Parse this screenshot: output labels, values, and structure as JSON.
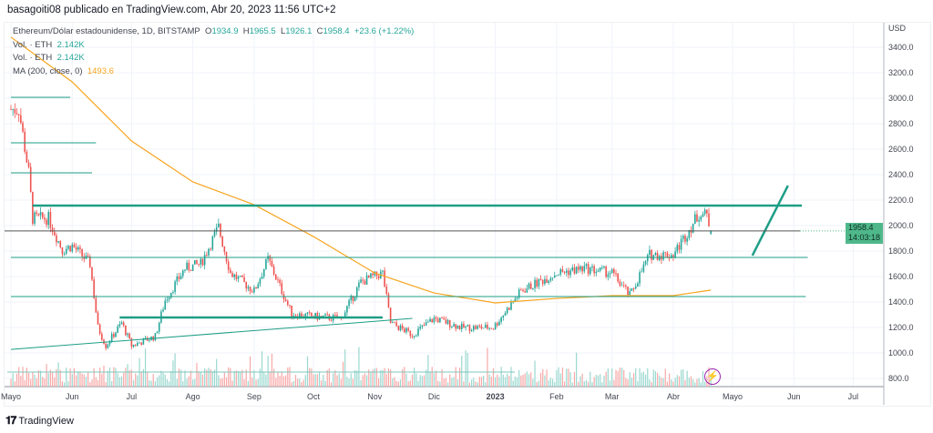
{
  "header": {
    "text": "basagoiti08 publicado en TradingView.com, Abr 20, 2023 11:56 UTC+2"
  },
  "legend": {
    "symbol": "Ethereum/Dólar estadounidense, 1D, BITSTAMP",
    "o_label": "O",
    "o": "1934.9",
    "h_label": "H",
    "h": "1965.5",
    "l_label": "L",
    "l": "1926.1",
    "c_label": "C",
    "c": "1958.4",
    "change": "+23.6 (+1.22%)",
    "vol1_label": "Vol. · ETH",
    "vol1": "2.142K",
    "vol2_label": "Vol. · ETH",
    "vol2": "2.142K",
    "ma_label": "MA (200, close, 0)",
    "ma": "1493.6"
  },
  "price_badge": {
    "price": "1958.4",
    "countdown": "14:03:18"
  },
  "logo": {
    "mark": "TV",
    "text": "TradingView"
  },
  "colors": {
    "up": "#26a69a",
    "down": "#ef5350",
    "ma": "#f7a41d",
    "drawing": "#1e9e86",
    "lightning": "#9c27b0"
  },
  "icons": {
    "lightning": "lightning-icon"
  },
  "chart_data": {
    "type": "candlestick",
    "currency_label": "USD",
    "y_ticks": [
      "3400.0",
      "3200.0",
      "3000.0",
      "2800.0",
      "2600.0",
      "2400.0",
      "2200.0",
      "2000.0",
      "1800.0",
      "1600.0",
      "1400.0",
      "1200.0",
      "1000.0",
      "800.0"
    ],
    "ylim": [
      800,
      3400
    ],
    "x_ticks": [
      "Mayo",
      "Jun",
      "Jul",
      "Ago",
      "Sep",
      "Oct",
      "Nov",
      "Dic",
      "2023",
      "Feb",
      "Mar",
      "Abr",
      "Mayo",
      "Jun",
      "Jul"
    ],
    "x_range": [
      "2022-05-01",
      "2023-07-14"
    ],
    "price_path": [
      [
        "2022-05-01",
        2914
      ],
      [
        "2022-05-05",
        2914
      ],
      [
        "2022-05-10",
        2414
      ],
      [
        "2022-05-12",
        2057
      ],
      [
        "2022-05-20",
        2057
      ],
      [
        "2022-05-27",
        1807
      ],
      [
        "2022-06-01",
        1843
      ],
      [
        "2022-06-10",
        1700
      ],
      [
        "2022-06-14",
        1200
      ],
      [
        "2022-06-18",
        1057
      ],
      [
        "2022-06-26",
        1236
      ],
      [
        "2022-07-01",
        1057
      ],
      [
        "2022-07-13",
        1130
      ],
      [
        "2022-07-18",
        1414
      ],
      [
        "2022-07-28",
        1664
      ],
      [
        "2022-08-05",
        1700
      ],
      [
        "2022-08-14",
        1986
      ],
      [
        "2022-08-20",
        1628
      ],
      [
        "2022-09-01",
        1486
      ],
      [
        "2022-09-08",
        1736
      ],
      [
        "2022-09-20",
        1307
      ],
      [
        "2022-10-01",
        1286
      ],
      [
        "2022-10-15",
        1271
      ],
      [
        "2022-10-25",
        1557
      ],
      [
        "2022-11-05",
        1628
      ],
      [
        "2022-11-09",
        1236
      ],
      [
        "2022-11-20",
        1143
      ],
      [
        "2022-12-01",
        1271
      ],
      [
        "2022-12-15",
        1200
      ],
      [
        "2022-12-31",
        1200
      ],
      [
        "2023-01-14",
        1486
      ],
      [
        "2023-02-01",
        1628
      ],
      [
        "2023-02-15",
        1664
      ],
      [
        "2023-03-01",
        1628
      ],
      [
        "2023-03-10",
        1450
      ],
      [
        "2023-03-20",
        1771
      ],
      [
        "2023-04-01",
        1771
      ],
      [
        "2023-04-14",
        2093
      ],
      [
        "2023-04-18",
        2079
      ],
      [
        "2023-04-20",
        1958.4
      ]
    ],
    "ma200": [
      [
        "2022-05-01",
        3480
      ],
      [
        "2022-06-01",
        3128
      ],
      [
        "2022-07-01",
        2664
      ],
      [
        "2022-08-01",
        2343
      ],
      [
        "2022-09-01",
        2164
      ],
      [
        "2022-10-01",
        1914
      ],
      [
        "2022-11-01",
        1628
      ],
      [
        "2022-12-01",
        1471
      ],
      [
        "2023-01-01",
        1393
      ],
      [
        "2023-02-01",
        1428
      ],
      [
        "2023-03-01",
        1450
      ],
      [
        "2023-04-01",
        1450
      ],
      [
        "2023-04-20",
        1493.6
      ]
    ],
    "horizontal_levels": [
      {
        "price": 2157,
        "from": "2022-05-12",
        "to": "2023-06-05",
        "thick": true
      },
      {
        "price": 1750,
        "from": "2022-05-01",
        "to": "2023-06-08",
        "thick": false
      },
      {
        "price": 1443,
        "from": "2022-05-01",
        "to": "2023-06-07",
        "thick": false
      },
      {
        "price": 2650,
        "from": "2022-05-01",
        "to": "2022-06-13",
        "thick": false
      },
      {
        "price": 2414,
        "from": "2022-05-01",
        "to": "2022-06-11",
        "thick": false
      },
      {
        "price": 3007,
        "from": "2022-05-01",
        "to": "2022-05-31",
        "thick": false
      },
      {
        "price": 1279,
        "from": "2022-06-25",
        "to": "2022-11-05",
        "thick": true
      }
    ],
    "trendlines": [
      {
        "p1": [
          "2022-05-01",
          1028
        ],
        "p2": [
          "2022-11-20",
          1271
        ]
      },
      {
        "p1": [
          "2023-05-11",
          1765
        ],
        "p2": [
          "2023-05-29",
          2314
        ]
      }
    ]
  }
}
